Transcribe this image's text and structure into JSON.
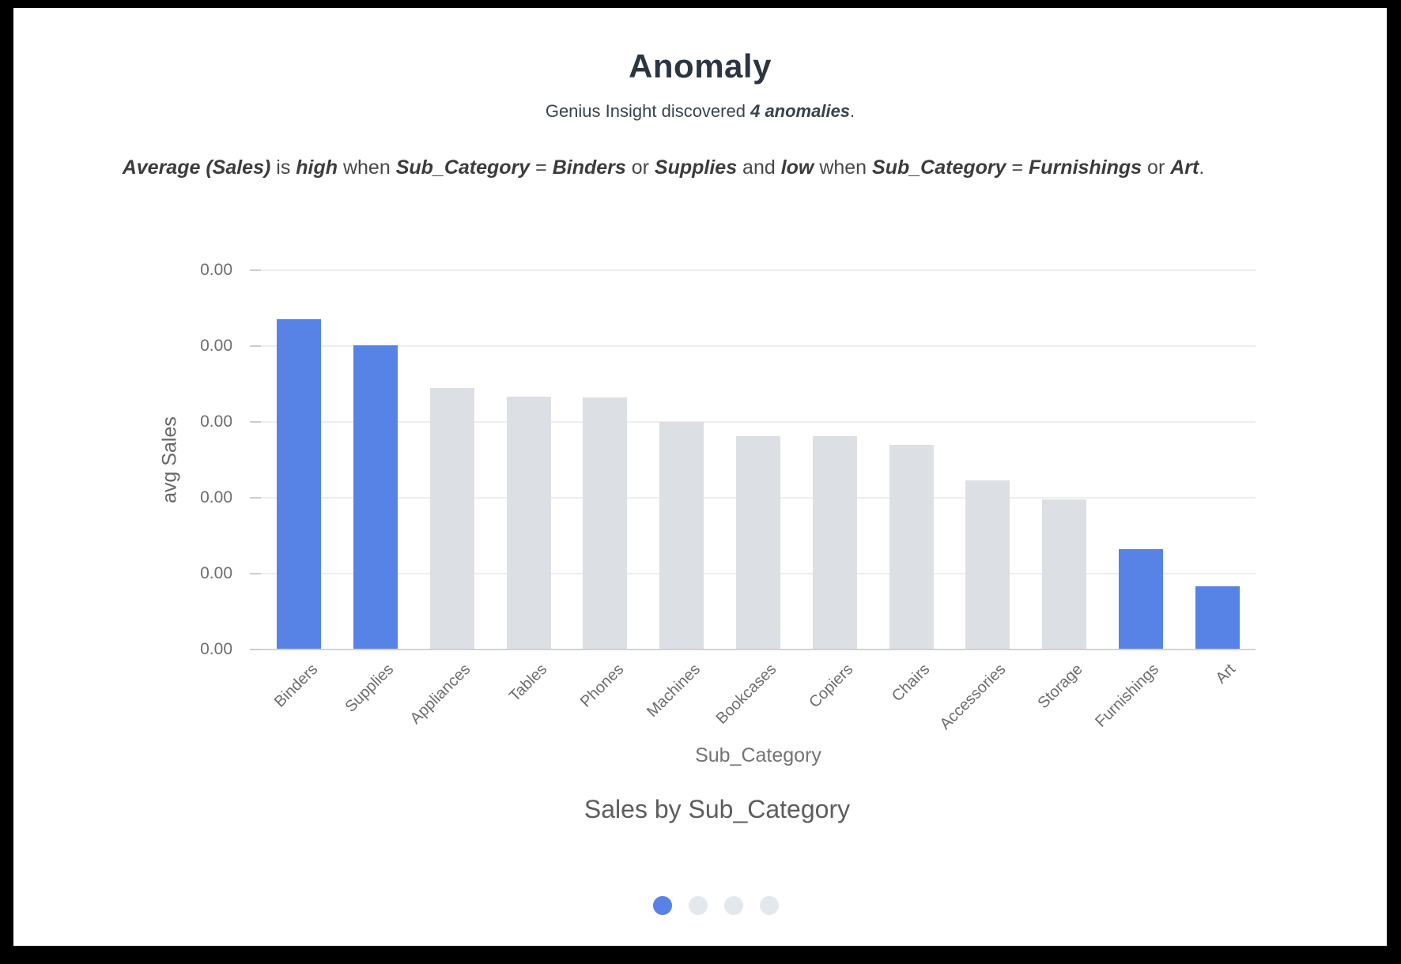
{
  "card": {
    "title": "Anomaly",
    "subtitle_prefix": "Genius Insight discovered ",
    "subtitle_emph": "4 anomalies",
    "subtitle_suffix": ".",
    "statement_segments": [
      {
        "text": "Average (Sales)",
        "emph": true
      },
      {
        "text": " is ",
        "emph": false
      },
      {
        "text": "high",
        "emph": true
      },
      {
        "text": " when ",
        "emph": false
      },
      {
        "text": "Sub_Category",
        "emph": true
      },
      {
        "text": " = ",
        "emph": false
      },
      {
        "text": "Binders",
        "emph": true
      },
      {
        "text": " or ",
        "emph": false
      },
      {
        "text": "Supplies",
        "emph": true
      },
      {
        "text": " and ",
        "emph": false
      },
      {
        "text": "low",
        "emph": true
      },
      {
        "text": " when ",
        "emph": false
      },
      {
        "text": "Sub_Category",
        "emph": true
      },
      {
        "text": " = ",
        "emph": false
      },
      {
        "text": "Furnishings",
        "emph": true
      },
      {
        "text": " or ",
        "emph": false
      },
      {
        "text": "Art",
        "emph": true
      },
      {
        "text": ".",
        "emph": false
      }
    ]
  },
  "chart_data": {
    "type": "bar",
    "title": "Sales by Sub_Category",
    "xlabel": "Sub_Category",
    "ylabel": "avg Sales",
    "categories": [
      "Binders",
      "Supplies",
      "Appliances",
      "Tables",
      "Phones",
      "Machines",
      "Bookcases",
      "Copiers",
      "Chairs",
      "Accessories",
      "Storage",
      "Furnishings",
      "Art"
    ],
    "values": [
      4.35,
      4.01,
      3.45,
      3.33,
      3.32,
      3.0,
      2.81,
      2.81,
      2.7,
      2.23,
      1.98,
      1.32,
      0.83
    ],
    "ylim": [
      0,
      5
    ],
    "y_tick_labels": [
      "0.00",
      "0.00",
      "0.00",
      "0.00",
      "0.00",
      "0.00"
    ],
    "grid": true,
    "legend": "none",
    "highlight_categories": [
      "Binders",
      "Supplies",
      "Furnishings",
      "Art"
    ],
    "colors": {
      "highlight": "#5782e6",
      "muted": "#dcdfe4",
      "gridline": "#ebedef",
      "axis_line": "#ccd3dd",
      "tick_mark": "#c9cdd2"
    }
  },
  "pagination": {
    "count": 4,
    "active_index": 0,
    "active_color": "#5782e6",
    "inactive_color": "#e3e8ef"
  }
}
